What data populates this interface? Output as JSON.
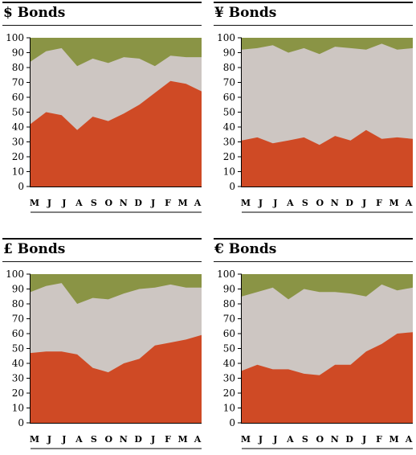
{
  "colors": {
    "top": "#8a9445",
    "middle": "#cdc6c2",
    "bottom": "#cf4a25"
  },
  "panels": [
    {
      "title": "$ Bonds"
    },
    {
      "title": "¥ Bonds"
    },
    {
      "title": "£ Bonds"
    },
    {
      "title": "€ Bonds"
    }
  ],
  "chart_data": [
    {
      "type": "area",
      "title": "$ Bonds",
      "categories": [
        "M",
        "J",
        "J",
        "A",
        "S",
        "O",
        "N",
        "D",
        "J",
        "F",
        "M",
        "A"
      ],
      "ylim": [
        0,
        100
      ],
      "yticks": [
        0,
        10,
        20,
        30,
        40,
        50,
        60,
        70,
        80,
        90,
        100
      ],
      "stacked_boundaries": [
        {
          "values": [
            42,
            50,
            48,
            38,
            47,
            44,
            49,
            55,
            63,
            71,
            69,
            64
          ]
        },
        {
          "values": [
            84,
            91,
            93,
            81,
            86,
            83,
            87,
            86,
            81,
            88,
            87,
            87
          ]
        }
      ]
    },
    {
      "type": "area",
      "title": "¥ Bonds",
      "categories": [
        "M",
        "J",
        "J",
        "A",
        "S",
        "O",
        "N",
        "D",
        "J",
        "F",
        "M",
        "A"
      ],
      "ylim": [
        0,
        100
      ],
      "yticks": [
        0,
        10,
        20,
        30,
        40,
        50,
        60,
        70,
        80,
        90,
        100
      ],
      "stacked_boundaries": [
        {
          "values": [
            31,
            33,
            29,
            31,
            33,
            28,
            34,
            31,
            38,
            32,
            33,
            32
          ]
        },
        {
          "values": [
            92,
            93,
            95,
            90,
            93,
            89,
            94,
            93,
            92,
            96,
            92,
            93
          ]
        }
      ]
    },
    {
      "type": "area",
      "title": "£ Bonds",
      "categories": [
        "M",
        "J",
        "J",
        "A",
        "S",
        "O",
        "N",
        "D",
        "J",
        "F",
        "M",
        "A"
      ],
      "ylim": [
        0,
        100
      ],
      "yticks": [
        0,
        10,
        20,
        30,
        40,
        50,
        60,
        70,
        80,
        90,
        100
      ],
      "stacked_boundaries": [
        {
          "values": [
            47,
            48,
            48,
            46,
            37,
            34,
            40,
            43,
            52,
            54,
            56,
            59
          ]
        },
        {
          "values": [
            88,
            92,
            94,
            80,
            84,
            83,
            87,
            90,
            91,
            93,
            91,
            91
          ]
        }
      ]
    },
    {
      "type": "area",
      "title": "€ Bonds",
      "categories": [
        "M",
        "J",
        "J",
        "A",
        "S",
        "O",
        "N",
        "D",
        "J",
        "F",
        "M",
        "A"
      ],
      "ylim": [
        0,
        100
      ],
      "yticks": [
        0,
        10,
        20,
        30,
        40,
        50,
        60,
        70,
        80,
        90,
        100
      ],
      "stacked_boundaries": [
        {
          "values": [
            35,
            39,
            36,
            36,
            33,
            32,
            39,
            39,
            48,
            53,
            60,
            61
          ]
        },
        {
          "values": [
            85,
            88,
            91,
            83,
            90,
            88,
            88,
            87,
            85,
            93,
            89,
            91
          ]
        }
      ]
    }
  ]
}
